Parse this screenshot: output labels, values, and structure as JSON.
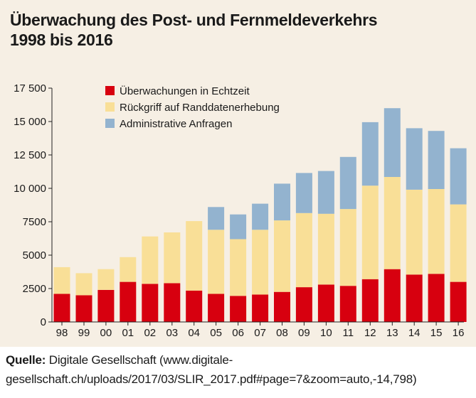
{
  "title_line1": "Überwachung des Post- und Fernmeldeverkehrs",
  "title_line2": "1998 bis 2016",
  "source_label": "Quelle:",
  "source_text": "Digitale Gesellschaft (www.digitale-gesellschaft.ch/uploads/2017/03/SLIR_2017.pdf#page=7&zoom=auto,-14,798)",
  "chart_data": {
    "type": "bar",
    "stacked": true,
    "categories": [
      "98",
      "99",
      "00",
      "01",
      "02",
      "03",
      "04",
      "05",
      "06",
      "07",
      "08",
      "09",
      "10",
      "11",
      "12",
      "13",
      "14",
      "15",
      "16"
    ],
    "series": [
      {
        "name": "Überwachungen in Echtzeit",
        "color": "#d7000f",
        "values": [
          2100,
          2000,
          2400,
          3000,
          2850,
          2900,
          2350,
          2100,
          1950,
          2050,
          2250,
          2600,
          2800,
          2700,
          3200,
          3950,
          3550,
          3600,
          3000
        ]
      },
      {
        "name": "Rückgriff auf Randdatenerhebung",
        "color": "#f9df97",
        "values": [
          2000,
          1650,
          1550,
          1850,
          3550,
          3800,
          5200,
          4800,
          4250,
          4850,
          5350,
          5550,
          5300,
          5750,
          7000,
          6900,
          6350,
          6350,
          5800
        ]
      },
      {
        "name": "Administrative Anfragen",
        "color": "#93b3cf",
        "values": [
          0,
          0,
          0,
          0,
          0,
          0,
          0,
          1700,
          1850,
          1950,
          2750,
          3000,
          3200,
          3900,
          4750,
          5150,
          4600,
          4350,
          4200
        ]
      }
    ],
    "ylim": [
      0,
      17500
    ],
    "yticks": [
      0,
      2500,
      5000,
      7500,
      10000,
      12500,
      15000,
      17500
    ],
    "ytick_labels": [
      "0",
      "2500",
      "5000",
      "7500",
      "10 000",
      "12 500",
      "15 000",
      "17 500"
    ],
    "legend_position": "top-left",
    "grid": false
  }
}
